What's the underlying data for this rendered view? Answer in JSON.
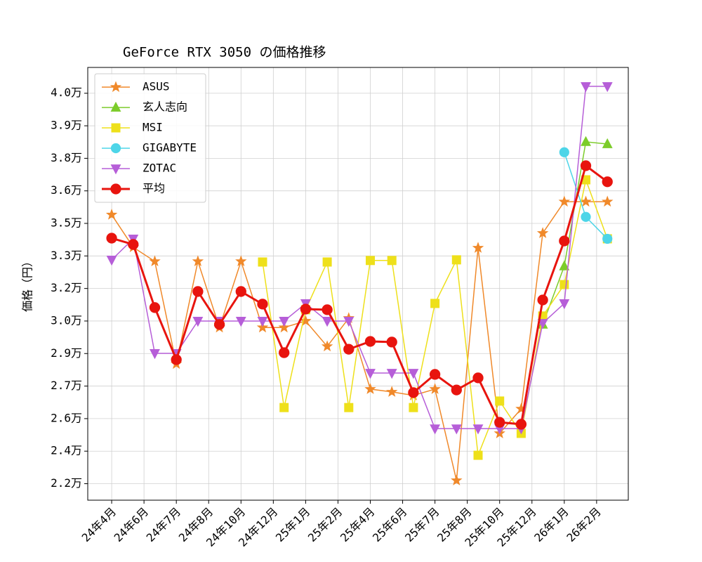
{
  "chart_data": {
    "type": "line",
    "title": "GeForce RTX 3050 の価格推移",
    "y_label": "価格（円）",
    "x": [
      0,
      1,
      2,
      3,
      4,
      5,
      6,
      7,
      8,
      9,
      10,
      11,
      12,
      13,
      14,
      15,
      16,
      17,
      18,
      19,
      20,
      21,
      22,
      23
    ],
    "xlim": [
      -1.11,
      23.97
    ],
    "xticks": [
      {
        "value": 0,
        "label": "24年4月"
      },
      {
        "value": 1.5,
        "label": "24年6月"
      },
      {
        "value": 3,
        "label": "24年7月"
      },
      {
        "value": 4.5,
        "label": "24年8月"
      },
      {
        "value": 6,
        "label": "24年10月"
      },
      {
        "value": 7.5,
        "label": "24年12月"
      },
      {
        "value": 9,
        "label": "25年1月"
      },
      {
        "value": 10.5,
        "label": "25年2月"
      },
      {
        "value": 12,
        "label": "25年4月"
      },
      {
        "value": 13.5,
        "label": "25年6月"
      },
      {
        "value": 15,
        "label": "25年7月"
      },
      {
        "value": 16.5,
        "label": "25年8月"
      },
      {
        "value": 18,
        "label": "25年10月"
      },
      {
        "value": 19.5,
        "label": "25年12月"
      },
      {
        "value": 21,
        "label": "26年1月"
      },
      {
        "value": 22.5,
        "label": "26年2月"
      }
    ],
    "ylim": [
      21740,
      41690
    ],
    "yticks": [
      {
        "value": 22500,
        "label": "2.2万"
      },
      {
        "value": 24000,
        "label": "2.4万"
      },
      {
        "value": 25500,
        "label": "2.6万"
      },
      {
        "value": 27000,
        "label": "2.7万"
      },
      {
        "value": 28500,
        "label": "2.9万"
      },
      {
        "value": 30000,
        "label": "3.0万"
      },
      {
        "value": 31500,
        "label": "3.2万"
      },
      {
        "value": 33000,
        "label": "3.3万"
      },
      {
        "value": 34500,
        "label": "3.5万"
      },
      {
        "value": 36000,
        "label": "3.6万"
      },
      {
        "value": 37500,
        "label": "3.8万"
      },
      {
        "value": 39000,
        "label": "3.9万"
      },
      {
        "value": 40500,
        "label": "4.0万"
      }
    ],
    "grid": true,
    "legend": "upper left",
    "series": [
      {
        "name": "ASUS",
        "color": "#f0892a",
        "marker": "star",
        "width": 1.5,
        "values": [
          34900,
          33400,
          32750,
          28020,
          32750,
          29700,
          32750,
          29700,
          29700,
          30000,
          28830,
          30130,
          26860,
          26730,
          26570,
          26860,
          22650,
          33370,
          24820,
          25950,
          34050,
          35500,
          35500,
          35500
        ]
      },
      {
        "name": "玄人志向",
        "color": "#7ccc2a",
        "marker": "triangle-up",
        "width": 1.5,
        "values": [
          null,
          null,
          null,
          null,
          null,
          null,
          null,
          null,
          null,
          null,
          null,
          null,
          null,
          null,
          null,
          null,
          null,
          null,
          null,
          null,
          29840,
          32530,
          38260,
          38160
        ]
      },
      {
        "name": "MSI",
        "color": "#eee01a",
        "marker": "square",
        "width": 1.5,
        "values": [
          null,
          null,
          null,
          null,
          null,
          null,
          null,
          32720,
          26010,
          30520,
          32720,
          26010,
          32790,
          32790,
          26010,
          30810,
          32820,
          23810,
          26310,
          24820,
          30230,
          31680,
          36510,
          33790
        ]
      },
      {
        "name": "GIGABYTE",
        "color": "#4dd5e8",
        "marker": "circle",
        "width": 1.5,
        "values": [
          null,
          null,
          null,
          null,
          null,
          null,
          null,
          null,
          null,
          null,
          null,
          null,
          null,
          null,
          null,
          null,
          null,
          null,
          null,
          null,
          null,
          37780,
          34800,
          33790
        ]
      },
      {
        "name": "ZOTAC",
        "color": "#b65ed8",
        "marker": "triangle-down",
        "width": 1.5,
        "values": [
          32820,
          33790,
          28510,
          28510,
          30000,
          30000,
          30000,
          30000,
          30000,
          30810,
          30000,
          30000,
          27600,
          27600,
          27600,
          25040,
          25040,
          25040,
          25040,
          25040,
          29900,
          30810,
          40820,
          40820
        ]
      },
      {
        "name": "平均",
        "color": "#e8140e",
        "marker": "circle",
        "width": 3,
        "values": [
          33820,
          33530,
          30620,
          28220,
          31360,
          29840,
          31360,
          30780,
          28540,
          30550,
          30520,
          28700,
          29060,
          29030,
          26700,
          27540,
          26820,
          27380,
          25330,
          25240,
          30970,
          33690,
          37160,
          36420
        ]
      }
    ]
  }
}
